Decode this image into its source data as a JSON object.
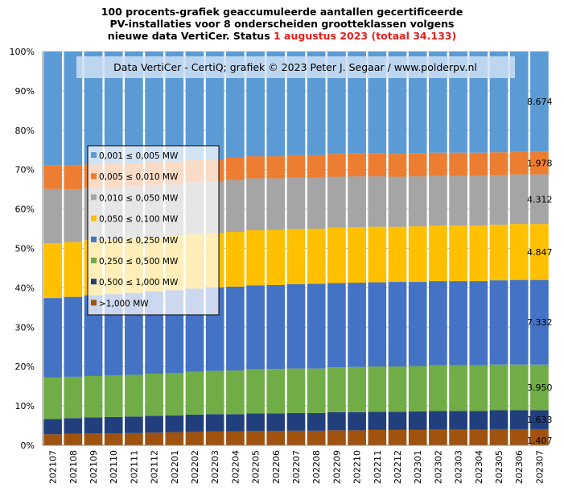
{
  "chart_data": {
    "type": "bar",
    "stacked": true,
    "percent_stacked": true,
    "title_lines": [
      "100 procents-grafiek geaccumuleerde aantallen gecertificeerde",
      "PV-installaties voor 8 onderscheiden grootteklassen volgens",
      "nieuwe data VertiCer. Status"
    ],
    "title_highlight": "1 augustus 2023 (totaal 34.133)",
    "title_highlight_color": "#e8201c",
    "credit": "Data VertiCer - CertiQ; grafiek © 2023 Peter J. Segaar / www.polderpv.nl",
    "ylim": [
      0,
      100
    ],
    "yticks": [
      "0%",
      "10%",
      "20%",
      "30%",
      "40%",
      "50%",
      "60%",
      "70%",
      "80%",
      "90%",
      "100%"
    ],
    "grid": true,
    "legend_position": "upper-left",
    "categories": [
      "202107",
      "202108",
      "202109",
      "202110",
      "202111",
      "202112",
      "202201",
      "202202",
      "202203",
      "202204",
      "202205",
      "202206",
      "202207",
      "202208",
      "202209",
      "202210",
      "202211",
      "202212",
      "202301",
      "202302",
      "202303",
      "202304",
      "202305",
      "202306",
      "202307"
    ],
    "series": [
      {
        "name": ">1,000 MW",
        "color": "#a0520f",
        "values": [
          2.8,
          2.9,
          3.0,
          3.0,
          3.1,
          3.2,
          3.3,
          3.4,
          3.5,
          3.5,
          3.6,
          3.6,
          3.7,
          3.7,
          3.8,
          3.8,
          3.9,
          3.9,
          3.9,
          4.0,
          4.0,
          4.0,
          4.1,
          4.1,
          4.1
        ]
      },
      {
        "name": "0,500 ≤ 1,000 MW",
        "color": "#223f7d",
        "values": [
          3.9,
          4.0,
          4.1,
          4.2,
          4.2,
          4.3,
          4.3,
          4.4,
          4.4,
          4.4,
          4.5,
          4.5,
          4.5,
          4.5,
          4.6,
          4.6,
          4.6,
          4.6,
          4.7,
          4.7,
          4.7,
          4.7,
          4.8,
          4.8,
          4.8
        ]
      },
      {
        "name": "0,250 ≤ 0,500 MW",
        "color": "#70ad47",
        "values": [
          10.5,
          10.5,
          10.5,
          10.6,
          10.6,
          10.7,
          10.8,
          10.9,
          11.0,
          11.1,
          11.2,
          11.3,
          11.3,
          11.3,
          11.4,
          11.5,
          11.5,
          11.5,
          11.5,
          11.6,
          11.6,
          11.6,
          11.6,
          11.6,
          11.6
        ]
      },
      {
        "name": "0,100 ≤ 0,250 MW",
        "color": "#4472c4",
        "values": [
          20.2,
          20.3,
          20.5,
          20.6,
          20.8,
          20.9,
          21.0,
          21.1,
          21.2,
          21.3,
          21.3,
          21.3,
          21.4,
          21.5,
          21.4,
          21.4,
          21.4,
          21.5,
          21.4,
          21.4,
          21.4,
          21.4,
          21.4,
          21.5,
          21.5
        ]
      },
      {
        "name": "0,050 ≤ 0,100 MW",
        "color": "#ffc000",
        "values": [
          13.9,
          13.9,
          14.0,
          14.0,
          13.9,
          13.8,
          13.8,
          13.8,
          13.8,
          13.9,
          14.0,
          14.0,
          14.0,
          14.0,
          14.1,
          14.1,
          14.1,
          14.0,
          14.1,
          14.1,
          14.1,
          14.1,
          14.1,
          14.2,
          14.2
        ]
      },
      {
        "name": "0,010 ≤ 0,050 MW",
        "color": "#a5a5a5",
        "values": [
          13.8,
          13.4,
          13.2,
          13.1,
          13.2,
          13.2,
          13.2,
          13.2,
          13.0,
          13.2,
          13.2,
          13.1,
          13.1,
          13.0,
          12.9,
          12.9,
          12.8,
          12.7,
          12.7,
          12.7,
          12.7,
          12.7,
          12.6,
          12.6,
          12.6
        ]
      },
      {
        "name": "0,005 ≤ 0,010 MW",
        "color": "#ed7d31",
        "values": [
          5.9,
          6.0,
          6.0,
          5.9,
          5.8,
          5.8,
          5.8,
          5.7,
          5.6,
          5.6,
          5.6,
          5.6,
          5.7,
          5.7,
          5.8,
          5.8,
          5.8,
          5.8,
          5.8,
          5.8,
          5.8,
          5.8,
          5.8,
          5.8,
          5.8
        ]
      },
      {
        "name": "0,001 ≤ 0,005 MW",
        "color": "#5b9bd5",
        "values": [
          29.0,
          29.0,
          28.7,
          28.6,
          28.4,
          28.1,
          27.8,
          27.5,
          27.5,
          27.0,
          26.6,
          26.6,
          26.3,
          26.3,
          26.0,
          25.9,
          25.9,
          26.0,
          25.9,
          25.7,
          25.7,
          25.7,
          25.6,
          25.4,
          25.4
        ]
      }
    ],
    "last_values": [
      "1.407",
      "1.633",
      "3.950",
      "7.332",
      "4.847",
      "4.312",
      "1.978",
      "8.674"
    ]
  }
}
